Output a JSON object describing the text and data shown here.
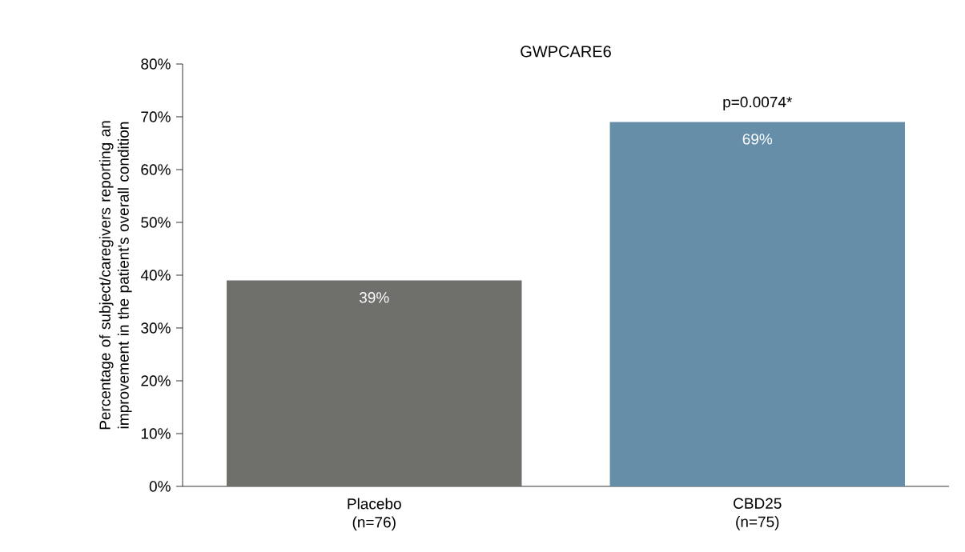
{
  "chart_data": {
    "type": "bar",
    "title": "GWPCARE6",
    "ylabel": "Percentage of subject/caregivers reporting an improvement in the patient's overall condition",
    "categories": [
      "Placebo (n=76)",
      "CBD25 (n=75)"
    ],
    "values": [
      39,
      69
    ],
    "colors": [
      "#6f6f6b",
      "#668ea9"
    ],
    "value_labels": [
      "39%",
      "69%"
    ],
    "ylim": [
      0,
      80
    ],
    "yticks": [
      {
        "value": 0,
        "label": "0%"
      },
      {
        "value": 10,
        "label": "10%"
      },
      {
        "value": 20,
        "label": "20%"
      },
      {
        "value": 30,
        "label": "30%"
      },
      {
        "value": 40,
        "label": "40%"
      },
      {
        "value": 50,
        "label": "50%"
      },
      {
        "value": 60,
        "label": "60%"
      },
      {
        "value": 70,
        "label": "70%"
      },
      {
        "value": 80,
        "label": "80%"
      }
    ],
    "annotations": [
      {
        "text": "p=0.0074*",
        "x": "CBD25 (n=75)",
        "y": 69
      }
    ],
    "grid": false
  }
}
